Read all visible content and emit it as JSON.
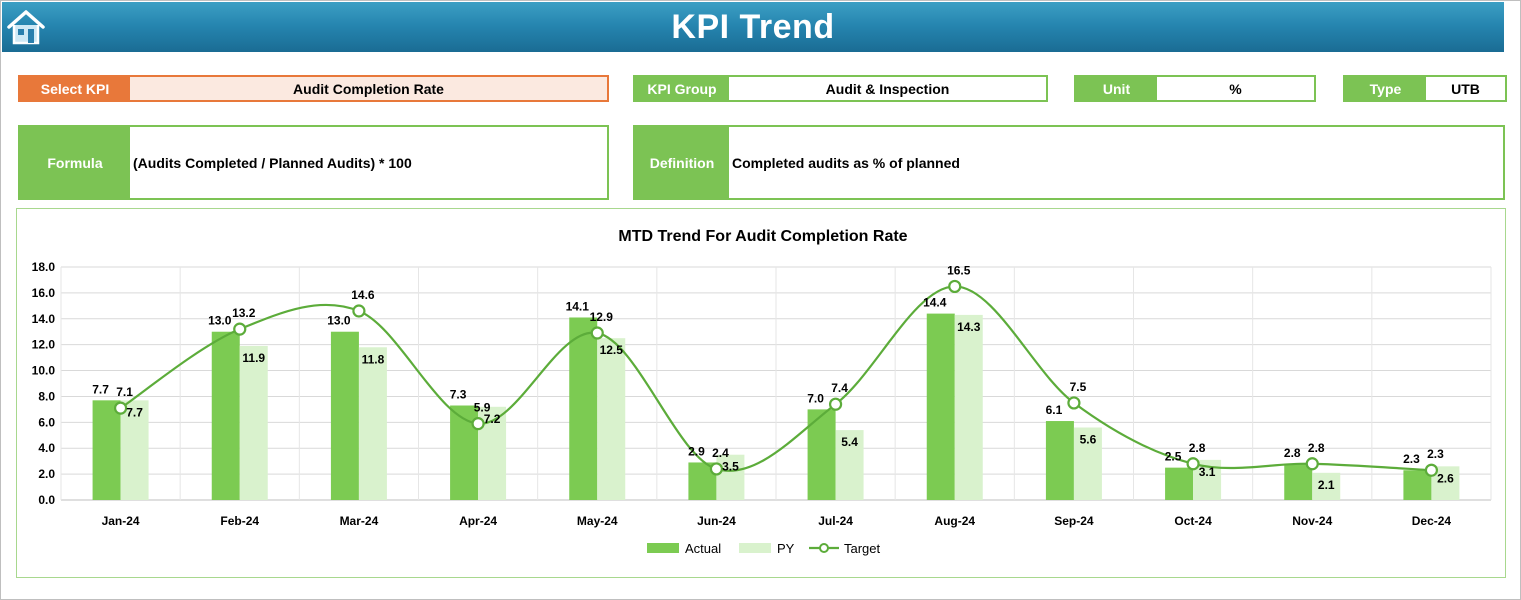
{
  "header": {
    "title": "KPI Trend"
  },
  "fields": {
    "select_kpi": {
      "label": "Select KPI",
      "value": "Audit Completion Rate"
    },
    "kpi_group": {
      "label": "KPI Group",
      "value": "Audit & Inspection"
    },
    "unit": {
      "label": "Unit",
      "value": "%"
    },
    "type": {
      "label": "Type",
      "value": "UTB"
    },
    "formula": {
      "label": "Formula",
      "value": "(Audits Completed / Planned Audits) * 100"
    },
    "definition": {
      "label": "Definition",
      "value": "Completed audits as % of planned"
    }
  },
  "colors": {
    "actual": "#7ccb52",
    "py": "#d9f2cd",
    "target": "#5cac3a",
    "accent_orange": "#e8783a"
  },
  "chart_data": {
    "type": "bar",
    "title": "MTD Trend For Audit Completion Rate",
    "categories": [
      "Jan-24",
      "Feb-24",
      "Mar-24",
      "Apr-24",
      "May-24",
      "Jun-24",
      "Jul-24",
      "Aug-24",
      "Sep-24",
      "Oct-24",
      "Nov-24",
      "Dec-24"
    ],
    "series": [
      {
        "name": "Actual",
        "type": "bar",
        "values": [
          7.7,
          13.0,
          13.0,
          7.3,
          14.1,
          2.9,
          7.0,
          14.4,
          6.1,
          2.5,
          2.8,
          2.3
        ]
      },
      {
        "name": "PY",
        "type": "bar",
        "values": [
          7.7,
          11.9,
          11.8,
          7.2,
          12.5,
          3.5,
          5.4,
          14.3,
          5.6,
          3.1,
          2.1,
          2.6
        ]
      },
      {
        "name": "Target",
        "type": "line",
        "values": [
          7.1,
          13.2,
          14.6,
          5.9,
          12.9,
          2.4,
          7.4,
          16.5,
          7.5,
          2.8,
          2.8,
          2.3
        ]
      }
    ],
    "ylim": [
      0,
      18
    ],
    "yticks": [
      "0.0",
      "2.0",
      "4.0",
      "6.0",
      "8.0",
      "10.0",
      "12.0",
      "14.0",
      "16.0",
      "18.0"
    ],
    "grid": true,
    "legend": "bottom"
  }
}
